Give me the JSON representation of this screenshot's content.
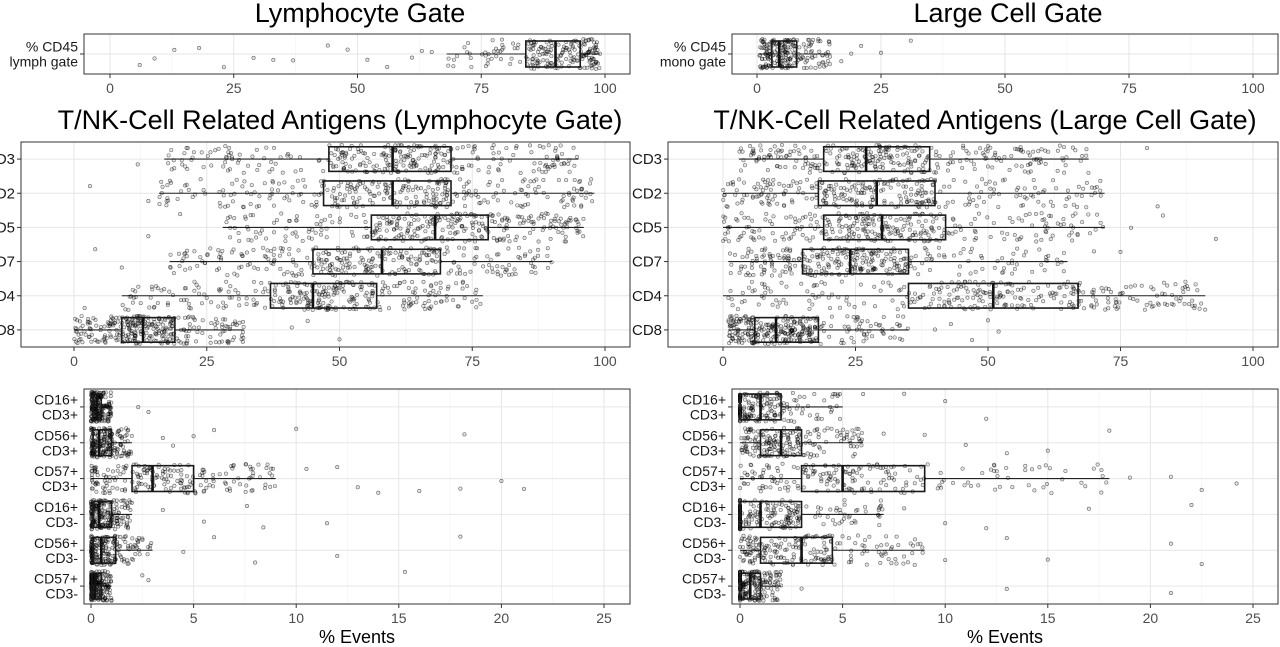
{
  "xlabel": "% Events",
  "chart_data": [
    {
      "type": "boxplot",
      "title": "Lymphocyte Gate",
      "xlim": [
        0,
        100
      ],
      "xticks": [
        0,
        25,
        50,
        75,
        100
      ],
      "categories": [
        "% CD45\nlymph gate"
      ],
      "boxes": [
        {
          "q1": 84,
          "median": 90,
          "q3": 95,
          "whisker_low": 68,
          "whisker_high": 99
        }
      ],
      "outliers_approx": [
        [
          6,
          9,
          13,
          18,
          23,
          29,
          33,
          37,
          44,
          48,
          52,
          56,
          61,
          63,
          65
        ]
      ]
    },
    {
      "type": "boxplot",
      "title": "Large Cell Gate",
      "xlim": [
        0,
        100
      ],
      "xticks": [
        0,
        25,
        50,
        75,
        100
      ],
      "categories": [
        "% CD45\nmono gate"
      ],
      "boxes": [
        {
          "q1": 3,
          "median": 4.5,
          "q3": 8,
          "whisker_low": 0.5,
          "whisker_high": 15
        }
      ],
      "outliers_approx": [
        [
          17,
          19,
          21,
          25,
          31
        ]
      ]
    },
    {
      "type": "boxplot",
      "title": "T/NK-Cell Related Antigens (Lymphocyte Gate)",
      "xlim": [
        0,
        100
      ],
      "xticks": [
        0,
        25,
        50,
        75,
        100
      ],
      "categories": [
        "CD3",
        "CD2",
        "CD5",
        "CD7",
        "CD4",
        "CD8"
      ],
      "boxes": [
        {
          "q1": 48,
          "median": 60,
          "q3": 71,
          "whisker_low": 17,
          "whisker_high": 95
        },
        {
          "q1": 47,
          "median": 60,
          "q3": 71,
          "whisker_low": 16,
          "whisker_high": 98
        },
        {
          "q1": 56,
          "median": 68,
          "q3": 78,
          "whisker_low": 28,
          "whisker_high": 96
        },
        {
          "q1": 45,
          "median": 58,
          "q3": 69,
          "whisker_low": 18,
          "whisker_high": 90
        },
        {
          "q1": 37,
          "median": 45,
          "q3": 57,
          "whisker_low": 9,
          "whisker_high": 77
        },
        {
          "q1": 9,
          "median": 13,
          "q3": 19,
          "whisker_low": 0,
          "whisker_high": 32
        }
      ],
      "outliers_approx": [
        [
          12
        ],
        [
          14,
          3
        ],
        [
          14,
          20
        ],
        [
          4,
          9
        ],
        [
          2
        ],
        [
          41,
          44,
          50
        ]
      ]
    },
    {
      "type": "boxplot",
      "title": "T/NK-Cell Related Antigens (Large Cell Gate)",
      "xlim": [
        0,
        100
      ],
      "xticks": [
        0,
        25,
        50,
        75,
        100
      ],
      "categories": [
        "CD3",
        "CD2",
        "CD5",
        "CD7",
        "CD4",
        "CD8"
      ],
      "boxes": [
        {
          "q1": 19,
          "median": 27,
          "q3": 39,
          "whisker_low": 3,
          "whisker_high": 69
        },
        {
          "q1": 18,
          "median": 29,
          "q3": 40,
          "whisker_low": 0,
          "whisker_high": 72
        },
        {
          "q1": 19,
          "median": 30,
          "q3": 42,
          "whisker_low": 0,
          "whisker_high": 72
        },
        {
          "q1": 15,
          "median": 24,
          "q3": 35,
          "whisker_low": 1,
          "whisker_high": 65
        },
        {
          "q1": 35,
          "median": 51,
          "q3": 67,
          "whisker_low": 0,
          "whisker_high": 91
        },
        {
          "q1": 6,
          "median": 10,
          "q3": 18,
          "whisker_low": 1,
          "whisker_high": 35
        }
      ],
      "outliers_approx": [
        [
          80
        ],
        [
          82
        ],
        [
          77,
          83,
          93
        ],
        [
          70,
          75
        ],
        [],
        [
          40,
          43,
          47,
          50,
          52
        ]
      ]
    },
    {
      "type": "boxplot",
      "title": "",
      "xlim": [
        0,
        25
      ],
      "xticks": [
        0,
        5,
        10,
        15,
        20,
        25
      ],
      "categories": [
        "CD16+\nCD3+",
        "CD56+\nCD3+",
        "CD57+\nCD3+",
        "CD16+\nCD3-",
        "CD56+\nCD3-",
        "CD57+\nCD3-"
      ],
      "boxes": [
        {
          "q1": 0.1,
          "median": 0.3,
          "q3": 0.5,
          "whisker_low": 0,
          "whisker_high": 1
        },
        {
          "q1": 0.1,
          "median": 0.4,
          "q3": 1.0,
          "whisker_low": 0,
          "whisker_high": 2
        },
        {
          "q1": 2.0,
          "median": 3.0,
          "q3": 5.0,
          "whisker_low": 0,
          "whisker_high": 9
        },
        {
          "q1": 0.1,
          "median": 0.4,
          "q3": 1.0,
          "whisker_low": 0,
          "whisker_high": 2
        },
        {
          "q1": 0.1,
          "median": 0.5,
          "q3": 1.2,
          "whisker_low": 0,
          "whisker_high": 3
        },
        {
          "q1": 0.05,
          "median": 0.2,
          "q3": 0.5,
          "whisker_low": 0,
          "whisker_high": 1
        }
      ],
      "outliers_approx": [
        [
          2.3,
          2.8
        ],
        [
          3.5,
          4,
          5,
          6,
          10,
          18.2
        ],
        [
          10.5,
          12,
          13,
          14,
          16,
          18,
          20,
          21.1
        ],
        [
          3.5,
          5.5,
          7.6,
          8.4,
          11.5
        ],
        [
          4.5,
          6,
          8,
          12,
          18
        ],
        [
          2.5,
          2.8,
          15.3
        ]
      ]
    },
    {
      "type": "boxplot",
      "title": "",
      "xlim": [
        0,
        25
      ],
      "xticks": [
        0,
        5,
        10,
        15,
        20,
        25
      ],
      "categories": [
        "CD16+\nCD3+",
        "CD56+\nCD3+",
        "CD57+\nCD3+",
        "CD16+\nCD3-",
        "CD56+\nCD3-",
        "CD57+\nCD3-"
      ],
      "boxes": [
        {
          "q1": 0,
          "median": 1,
          "q3": 2,
          "whisker_low": 0,
          "whisker_high": 5
        },
        {
          "q1": 1,
          "median": 2,
          "q3": 3,
          "whisker_low": 0,
          "whisker_high": 6
        },
        {
          "q1": 3,
          "median": 5,
          "q3": 9,
          "whisker_low": 0,
          "whisker_high": 18
        },
        {
          "q1": 0,
          "median": 1,
          "q3": 3,
          "whisker_low": 0,
          "whisker_high": 7
        },
        {
          "q1": 1,
          "median": 3,
          "q3": 4.5,
          "whisker_low": 0,
          "whisker_high": 9
        },
        {
          "q1": 0,
          "median": 0.5,
          "q3": 1,
          "whisker_low": 0,
          "whisker_high": 2
        }
      ],
      "outliers_approx": [
        [
          6,
          8,
          10,
          12
        ],
        [
          7,
          9,
          11,
          13,
          15,
          18
        ],
        [
          19,
          21,
          22.5,
          24.2
        ],
        [
          8,
          10,
          12,
          17,
          22
        ],
        [
          10,
          13,
          15,
          21,
          22.5
        ],
        [
          3,
          13,
          21
        ]
      ]
    }
  ]
}
